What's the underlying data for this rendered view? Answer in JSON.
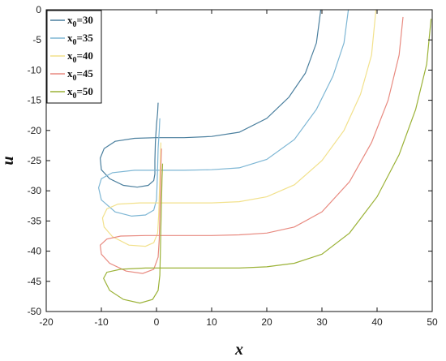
{
  "chart_data": {
    "type": "line",
    "xlabel": "x",
    "ylabel": "u",
    "xlim": [
      -20,
      50
    ],
    "ylim": [
      -50,
      0
    ],
    "xticks": [
      -20,
      -10,
      0,
      10,
      20,
      30,
      40,
      50
    ],
    "yticks": [
      0,
      -5,
      -10,
      -15,
      -20,
      -25,
      -30,
      -35,
      -40,
      -45,
      -50
    ],
    "legend_position": "top-left",
    "grid": false,
    "series": [
      {
        "name": "x0=30",
        "name_base": "x",
        "name_sub": "0",
        "name_rest": "=30",
        "color": "#4a7f9e",
        "points": [
          [
            0.3,
            -15.4
          ],
          [
            0.2,
            -17
          ],
          [
            0.0,
            -19
          ],
          [
            -0.2,
            -22
          ],
          [
            -0.3,
            -25
          ],
          [
            -0.3,
            -27.2
          ],
          [
            -0.5,
            -28.3
          ],
          [
            -1.5,
            -29.1
          ],
          [
            -3.5,
            -29.4
          ],
          [
            -6,
            -29.1
          ],
          [
            -8.5,
            -28
          ],
          [
            -10,
            -26.5
          ],
          [
            -10.2,
            -24.6
          ],
          [
            -9.5,
            -23
          ],
          [
            -7.5,
            -21.8
          ],
          [
            -4,
            -21.3
          ],
          [
            0,
            -21.2
          ],
          [
            5,
            -21.2
          ],
          [
            10,
            -21.0
          ],
          [
            15,
            -20.3
          ],
          [
            20,
            -18
          ],
          [
            24,
            -14.5
          ],
          [
            27,
            -10.5
          ],
          [
            29,
            -5.5
          ],
          [
            29.8,
            0
          ]
        ]
      },
      {
        "name": "x0=35",
        "name_base": "x",
        "name_sub": "0",
        "name_rest": "=35",
        "color": "#7db6d4",
        "points": [
          [
            0.6,
            -18
          ],
          [
            0.5,
            -20
          ],
          [
            0.3,
            -23
          ],
          [
            0.2,
            -26
          ],
          [
            0.1,
            -29
          ],
          [
            0.0,
            -31.5
          ],
          [
            -0.5,
            -33.2
          ],
          [
            -2,
            -34
          ],
          [
            -4.5,
            -34.2
          ],
          [
            -7.5,
            -33.5
          ],
          [
            -10,
            -31.5
          ],
          [
            -10.5,
            -29.5
          ],
          [
            -10,
            -28
          ],
          [
            -8,
            -27
          ],
          [
            -4,
            -26.6
          ],
          [
            0,
            -26.6
          ],
          [
            5,
            -26.6
          ],
          [
            10,
            -26.5
          ],
          [
            15,
            -26.2
          ],
          [
            20,
            -24.8
          ],
          [
            25,
            -21.5
          ],
          [
            29,
            -16.5
          ],
          [
            32,
            -11
          ],
          [
            34,
            -5.5
          ],
          [
            34.8,
            0
          ]
        ]
      },
      {
        "name": "x0=40",
        "name_base": "x",
        "name_sub": "0",
        "name_rest": "=40",
        "color": "#f2e18c",
        "points": [
          [
            0.8,
            -22
          ],
          [
            0.7,
            -25
          ],
          [
            0.6,
            -28
          ],
          [
            0.5,
            -31
          ],
          [
            0.4,
            -34
          ],
          [
            0.2,
            -37
          ],
          [
            -0.5,
            -38.6
          ],
          [
            -2,
            -39.2
          ],
          [
            -5,
            -39
          ],
          [
            -8,
            -37.6
          ],
          [
            -9.5,
            -36
          ],
          [
            -9.8,
            -34.5
          ],
          [
            -9,
            -33
          ],
          [
            -7,
            -32.2
          ],
          [
            -3,
            -32
          ],
          [
            0,
            -32
          ],
          [
            5,
            -32
          ],
          [
            10,
            -32
          ],
          [
            15,
            -31.8
          ],
          [
            20,
            -31
          ],
          [
            25,
            -29
          ],
          [
            30,
            -25
          ],
          [
            34,
            -20
          ],
          [
            37,
            -14
          ],
          [
            39,
            -7.5
          ],
          [
            39.8,
            0
          ]
        ]
      },
      {
        "name": "x0=45",
        "name_base": "x",
        "name_sub": "0",
        "name_rest": "=45",
        "color": "#e88a80",
        "points": [
          [
            0.9,
            -23
          ],
          [
            0.8,
            -26
          ],
          [
            0.7,
            -30
          ],
          [
            0.6,
            -34
          ],
          [
            0.5,
            -38
          ],
          [
            0.3,
            -41
          ],
          [
            -0.5,
            -43
          ],
          [
            -2.5,
            -43.7
          ],
          [
            -5.5,
            -43.3
          ],
          [
            -8.5,
            -42
          ],
          [
            -10,
            -40.5
          ],
          [
            -10.2,
            -39
          ],
          [
            -9,
            -38
          ],
          [
            -6.5,
            -37.5
          ],
          [
            -2,
            -37.4
          ],
          [
            0,
            -37.4
          ],
          [
            5,
            -37.4
          ],
          [
            10,
            -37.4
          ],
          [
            15,
            -37.3
          ],
          [
            20,
            -37
          ],
          [
            25,
            -36
          ],
          [
            30,
            -33.5
          ],
          [
            35,
            -28.5
          ],
          [
            39,
            -22
          ],
          [
            42,
            -15
          ],
          [
            44,
            -7.5
          ],
          [
            44.7,
            -1.2
          ]
        ]
      },
      {
        "name": "x0=50",
        "name_base": "x",
        "name_sub": "0",
        "name_rest": "=50",
        "color": "#9bb237",
        "points": [
          [
            1.1,
            -25.5
          ],
          [
            1.0,
            -28
          ],
          [
            0.9,
            -32
          ],
          [
            0.8,
            -36
          ],
          [
            0.7,
            -40
          ],
          [
            0.6,
            -44
          ],
          [
            0.3,
            -46.5
          ],
          [
            -0.7,
            -48
          ],
          [
            -3,
            -48.6
          ],
          [
            -6,
            -48
          ],
          [
            -8.5,
            -46.5
          ],
          [
            -9.6,
            -44.5
          ],
          [
            -9,
            -43.5
          ],
          [
            -6.5,
            -43
          ],
          [
            -2,
            -42.8
          ],
          [
            0,
            -42.8
          ],
          [
            5,
            -42.8
          ],
          [
            10,
            -42.8
          ],
          [
            15,
            -42.8
          ],
          [
            20,
            -42.6
          ],
          [
            25,
            -42
          ],
          [
            30,
            -40.5
          ],
          [
            35,
            -37
          ],
          [
            40,
            -31
          ],
          [
            44,
            -24
          ],
          [
            47,
            -16.5
          ],
          [
            49,
            -9
          ],
          [
            49.8,
            -1.5
          ]
        ]
      }
    ]
  }
}
